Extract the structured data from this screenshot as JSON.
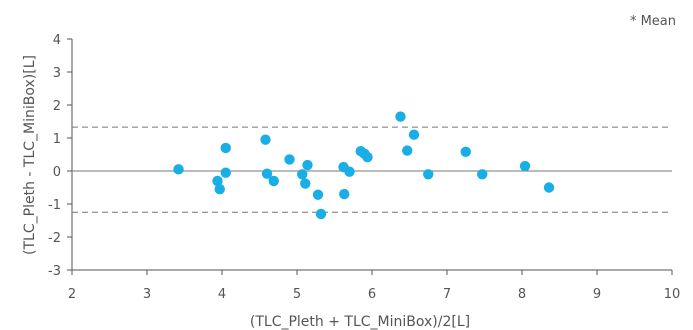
{
  "chart_data": {
    "type": "scatter",
    "title": "",
    "note": "* Mean",
    "xlabel": "(TLC_Pleth + TLC_MiniBox)/2[L]",
    "ylabel": "(TLC_Pleth - TLC_MiniBox)[L]",
    "xlim": [
      2,
      10
    ],
    "ylim": [
      -3,
      4
    ],
    "xticks": [
      "2",
      "3",
      "4",
      "5",
      "6",
      "7",
      "8",
      "9",
      "10"
    ],
    "yticks": [
      "4",
      "3",
      "2",
      "1",
      "0",
      "-1",
      "-2",
      "-3"
    ],
    "grid": false,
    "zero_line": 0,
    "limit_lines": [
      1.33,
      -1.25
    ],
    "point_color": "#1aaee6",
    "points": [
      {
        "x": 3.42,
        "y": 0.05
      },
      {
        "x": 3.94,
        "y": -0.3
      },
      {
        "x": 3.97,
        "y": -0.55
      },
      {
        "x": 4.05,
        "y": -0.05
      },
      {
        "x": 4.05,
        "y": 0.7
      },
      {
        "x": 4.58,
        "y": 0.95
      },
      {
        "x": 4.6,
        "y": -0.08
      },
      {
        "x": 4.69,
        "y": -0.3
      },
      {
        "x": 4.9,
        "y": 0.35
      },
      {
        "x": 5.07,
        "y": -0.1
      },
      {
        "x": 5.11,
        "y": -0.38
      },
      {
        "x": 5.14,
        "y": 0.18
      },
      {
        "x": 5.28,
        "y": -0.72
      },
      {
        "x": 5.32,
        "y": -1.3
      },
      {
        "x": 5.62,
        "y": 0.12
      },
      {
        "x": 5.63,
        "y": -0.7
      },
      {
        "x": 5.7,
        "y": -0.02
      },
      {
        "x": 5.85,
        "y": 0.6
      },
      {
        "x": 5.9,
        "y": 0.52
      },
      {
        "x": 5.94,
        "y": 0.42
      },
      {
        "x": 6.38,
        "y": 1.65
      },
      {
        "x": 6.47,
        "y": 0.62
      },
      {
        "x": 6.56,
        "y": 1.1
      },
      {
        "x": 6.75,
        "y": -0.1
      },
      {
        "x": 7.25,
        "y": 0.58
      },
      {
        "x": 7.47,
        "y": -0.1
      },
      {
        "x": 8.04,
        "y": 0.15
      },
      {
        "x": 8.36,
        "y": -0.5
      }
    ]
  }
}
